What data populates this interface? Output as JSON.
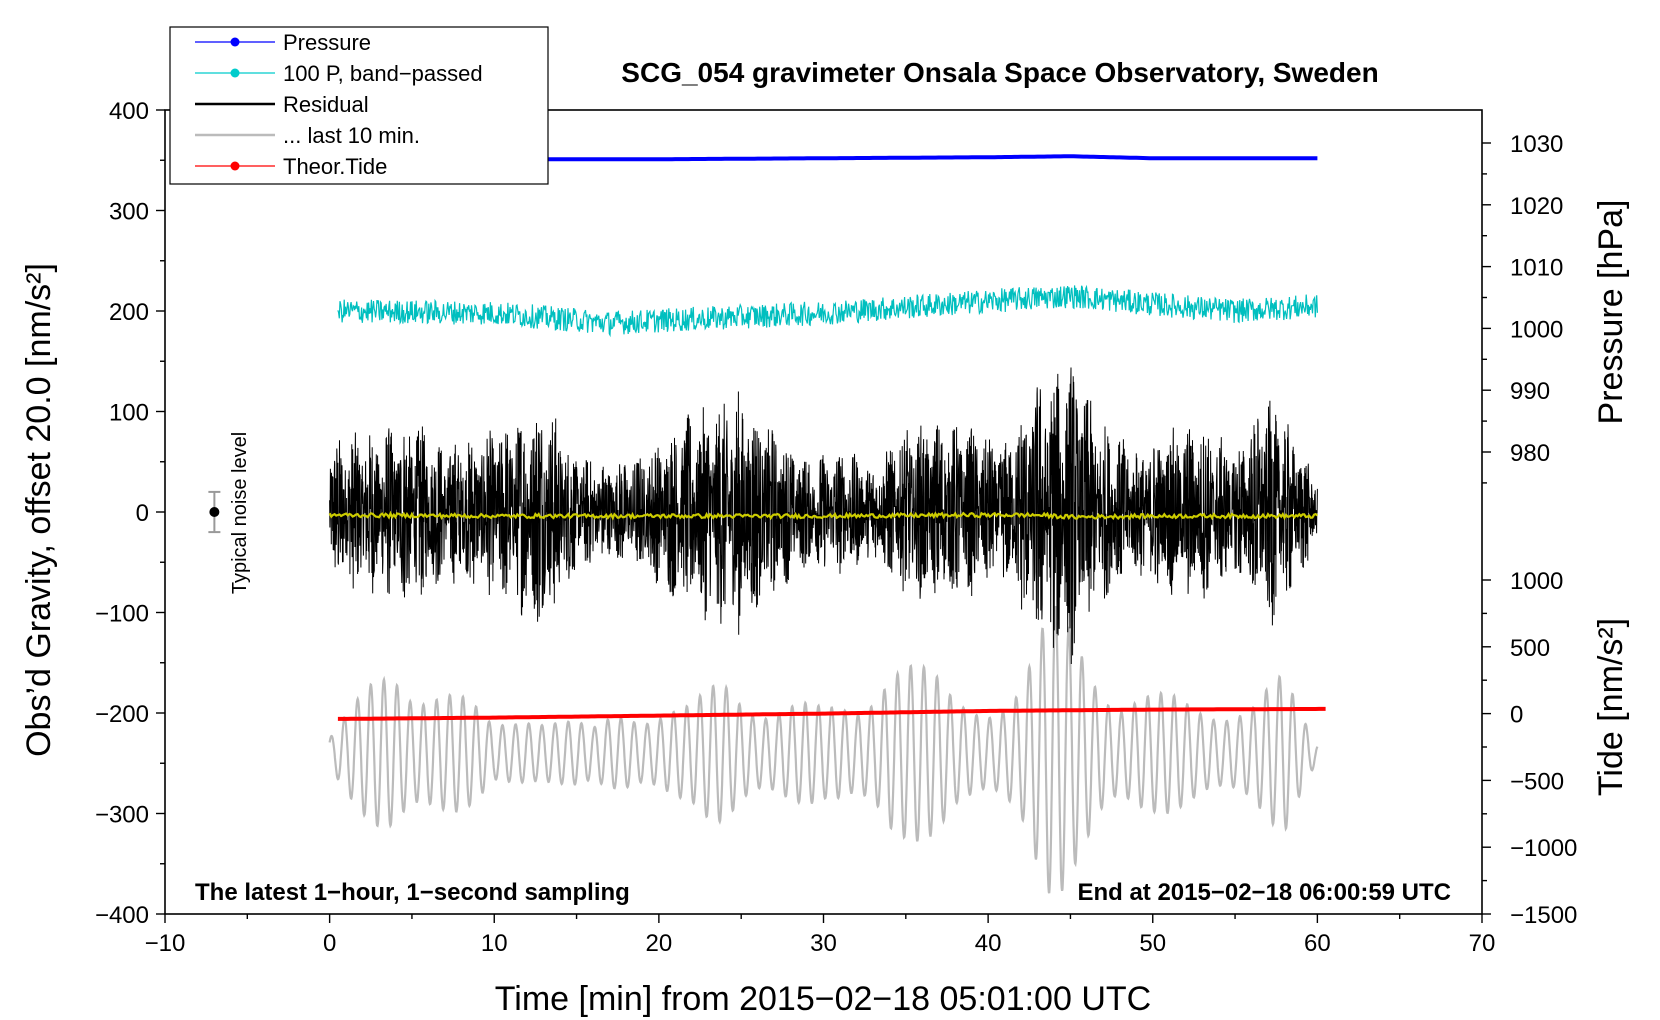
{
  "chart_data": {
    "type": "line",
    "title": "SCG_054 gravimeter Onsala Space Observatory, Sweden",
    "xlabel": "Time [min] from 2015−02−18 05:01:00 UTC",
    "ylabel_left": "Obs’d Gravity, offset 20.0 [nm/s²]",
    "ylabel_right_top": "Pressure [hPa]",
    "ylabel_right_bottom": "Tide [nm/s²]",
    "xlim": [
      -10,
      70
    ],
    "ylim_left": [
      -400,
      400
    ],
    "ylim_pressure": [
      980,
      1030
    ],
    "ylim_tide": [
      -1500,
      1000
    ],
    "x_ticks": [
      "−10",
      "0",
      "10",
      "20",
      "30",
      "40",
      "50",
      "60",
      "70"
    ],
    "x_tick_values": [
      -10,
      0,
      10,
      20,
      30,
      40,
      50,
      60,
      70
    ],
    "y_left_ticks": [
      "400",
      "300",
      "200",
      "100",
      "0",
      "−100",
      "−200",
      "−300",
      "−400"
    ],
    "y_left_tick_values": [
      400,
      300,
      200,
      100,
      0,
      -100,
      -200,
      -300,
      -400
    ],
    "pressure_ticks": [
      "1030",
      "1020",
      "1010",
      "1000",
      "990",
      "980"
    ],
    "pressure_tick_values": [
      1030,
      1020,
      1010,
      1000,
      990,
      980
    ],
    "tide_ticks": [
      "1000",
      "500",
      "0",
      "−500",
      "−1000",
      "−1500"
    ],
    "tide_tick_values": [
      1000,
      500,
      0,
      -500,
      -1000,
      -1500
    ],
    "notes": {
      "left": "The latest 1−hour, 1−second sampling",
      "right": "End at 2015−02−18 06:00:59 UTC"
    },
    "noise_label": "Typical noise level",
    "noise_bar": {
      "x": -7,
      "y": 0,
      "half_range": 20
    },
    "legend": {
      "position": "top-left",
      "entries": [
        {
          "label": "Pressure",
          "color": "#0000ff",
          "marker": true
        },
        {
          "label": "100 P, band−passed",
          "color": "#00cccc",
          "marker": true
        },
        {
          "label": "Residual",
          "color": "#000000",
          "marker": false
        },
        {
          "label": "... last 10 min.",
          "color": "#bbbbbb",
          "marker": false
        },
        {
          "label": "Theor.Tide",
          "color": "#ff0000",
          "marker": true
        }
      ]
    },
    "series": [
      {
        "name": "Pressure",
        "color": "#0000ff",
        "axis": "left",
        "x_range": [
          0,
          60
        ],
        "points": [
          [
            0,
            352
          ],
          [
            10,
            351
          ],
          [
            20,
            351
          ],
          [
            30,
            352
          ],
          [
            40,
            353
          ],
          [
            45,
            354
          ],
          [
            50,
            352
          ],
          [
            60,
            352
          ]
        ]
      },
      {
        "name": "100 P, band−passed",
        "color": "#00bfbf",
        "axis": "left",
        "x_range": [
          0.5,
          60
        ],
        "baseline": [
          [
            0.5,
            200
          ],
          [
            10,
            198
          ],
          [
            17,
            188
          ],
          [
            22,
            192
          ],
          [
            30,
            198
          ],
          [
            36,
            205
          ],
          [
            42,
            212
          ],
          [
            45,
            215
          ],
          [
            50,
            207
          ],
          [
            55,
            200
          ],
          [
            60,
            205
          ]
        ],
        "amplitude": 12
      },
      {
        "name": "Residual",
        "color": "#000000",
        "axis": "left",
        "x_range": [
          0,
          60
        ],
        "baseline": 0,
        "envelope": [
          [
            0,
            75
          ],
          [
            3,
            85
          ],
          [
            5,
            95
          ],
          [
            7,
            70
          ],
          [
            9,
            80
          ],
          [
            11,
            95
          ],
          [
            13,
            120
          ],
          [
            15,
            60
          ],
          [
            17,
            50
          ],
          [
            19,
            60
          ],
          [
            21,
            90
          ],
          [
            23,
            110
          ],
          [
            25,
            125
          ],
          [
            27,
            85
          ],
          [
            29,
            55
          ],
          [
            31,
            65
          ],
          [
            33,
            50
          ],
          [
            35,
            85
          ],
          [
            37,
            95
          ],
          [
            39,
            85
          ],
          [
            41,
            70
          ],
          [
            43,
            135
          ],
          [
            45,
            155
          ],
          [
            47,
            90
          ],
          [
            49,
            65
          ],
          [
            51,
            85
          ],
          [
            53,
            90
          ],
          [
            55,
            65
          ],
          [
            57,
            120
          ],
          [
            59,
            70
          ],
          [
            60,
            30
          ]
        ]
      },
      {
        "name": "... last 10 min.",
        "color": "#bbbbbb",
        "axis": "left",
        "x_range": [
          0,
          60
        ],
        "baseline": -240,
        "envelope": [
          [
            0,
            20
          ],
          [
            2,
            60
          ],
          [
            4,
            110
          ],
          [
            6,
            90
          ],
          [
            8,
            60
          ],
          [
            10,
            30
          ],
          [
            12,
            60
          ],
          [
            14,
            40
          ],
          [
            16,
            25
          ],
          [
            18,
            55
          ],
          [
            20,
            60
          ],
          [
            22,
            50
          ],
          [
            24,
            80
          ],
          [
            26,
            70
          ],
          [
            28,
            60
          ],
          [
            30,
            45
          ],
          [
            32,
            60
          ],
          [
            34,
            130
          ],
          [
            36,
            90
          ],
          [
            38,
            60
          ],
          [
            40,
            70
          ],
          [
            42,
            80
          ],
          [
            44,
            150
          ],
          [
            46,
            140
          ],
          [
            48,
            70
          ],
          [
            50,
            60
          ],
          [
            52,
            60
          ],
          [
            54,
            65
          ],
          [
            56,
            55
          ],
          [
            58,
            80
          ],
          [
            60,
            15
          ]
        ]
      },
      {
        "name": "Theor.Tide",
        "color": "#ff0000",
        "axis": "tide",
        "x_range": [
          0.5,
          60.5
        ],
        "points": [
          [
            0.5,
            -40
          ],
          [
            10,
            -30
          ],
          [
            20,
            -15
          ],
          [
            30,
            0
          ],
          [
            40,
            20
          ],
          [
            50,
            30
          ],
          [
            60.5,
            35
          ]
        ]
      },
      {
        "name": "Gravity mean",
        "color": "#cccc00",
        "axis": "left",
        "x_range": [
          0,
          60
        ],
        "points": [
          [
            0,
            -3
          ],
          [
            10,
            -4
          ],
          [
            20,
            -4
          ],
          [
            30,
            -4
          ],
          [
            40,
            -3
          ],
          [
            43,
            -3
          ],
          [
            45,
            -5
          ],
          [
            50,
            -4
          ],
          [
            60,
            -4
          ]
        ]
      }
    ]
  }
}
